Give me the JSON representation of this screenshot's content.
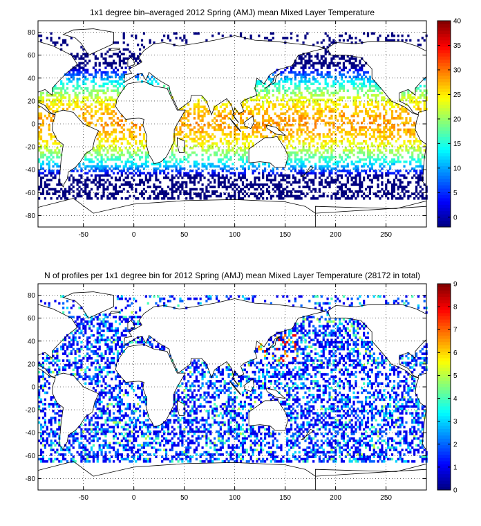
{
  "chart_data": [
    {
      "type": "heatmap",
      "title": "1x1 degree bin–averaged 2012 Spring (AMJ) mean Mixed Layer Temperature",
      "xlim": [
        -95,
        290
      ],
      "ylim": [
        -90,
        90
      ],
      "x_ticks": [
        -50,
        0,
        50,
        100,
        150,
        200,
        250
      ],
      "x_tick_labels": [
        "-50",
        "0",
        "50",
        "100",
        "150",
        "200",
        "250"
      ],
      "y_ticks": [
        80,
        60,
        40,
        20,
        0,
        -20,
        -40,
        -60,
        -80
      ],
      "y_tick_labels": [
        "80",
        "60",
        "40",
        "20",
        "0",
        "-20",
        "-40",
        "-60",
        "-80"
      ],
      "grid": true,
      "colorbar": {
        "range": [
          -2,
          40
        ],
        "ticks": [
          0,
          5,
          10,
          15,
          20,
          25,
          30,
          35,
          40
        ],
        "tick_labels": [
          "0",
          "5",
          "10",
          "15",
          "20",
          "25",
          "30",
          "35",
          "40"
        ],
        "colormap": "jet"
      },
      "field": "mixed layer temperature by 1x1 degree bin (sampled ocean bins)",
      "values_by_latitude_band": [
        {
          "lat": [
            60,
            75
          ],
          "value": 5
        },
        {
          "lat": [
            40,
            60
          ],
          "value": 12
        },
        {
          "lat": [
            20,
            40
          ],
          "value": 22
        },
        {
          "lat": [
            -20,
            20
          ],
          "value": 27
        },
        {
          "lat": [
            -40,
            -20
          ],
          "value": 20
        },
        {
          "lat": [
            -50,
            -40
          ],
          "value": 10
        },
        {
          "lat": [
            -65,
            -50
          ],
          "value": 3
        }
      ]
    },
    {
      "type": "heatmap",
      "title": "N of profiles per 1x1 degree bin for 2012 Spring (AMJ) mean Mixed Layer Temperature",
      "title_suffix": "(28172 in total)",
      "total_profiles": 28172,
      "xlim": [
        -95,
        290
      ],
      "ylim": [
        -90,
        90
      ],
      "x_ticks": [
        -50,
        0,
        50,
        100,
        150,
        200,
        250
      ],
      "x_tick_labels": [
        "-50",
        "0",
        "50",
        "100",
        "150",
        "200",
        "250"
      ],
      "y_ticks": [
        80,
        60,
        40,
        20,
        0,
        -20,
        -40,
        -60,
        -80
      ],
      "y_tick_labels": [
        "80",
        "60",
        "40",
        "20",
        "0",
        "-20",
        "-40",
        "-60",
        "-80"
      ],
      "grid": true,
      "colorbar": {
        "range": [
          0,
          9
        ],
        "ticks": [
          0,
          1,
          2,
          3,
          4,
          5,
          6,
          7,
          8,
          9
        ],
        "tick_labels": [
          "0",
          "1",
          "2",
          "3",
          "4",
          "5",
          "6",
          "7",
          "8",
          "9"
        ],
        "colormap": "jet"
      },
      "field": "number of profiles per 1x1 degree bin (mostly 1-3, scattered maxima near Japan)"
    }
  ]
}
